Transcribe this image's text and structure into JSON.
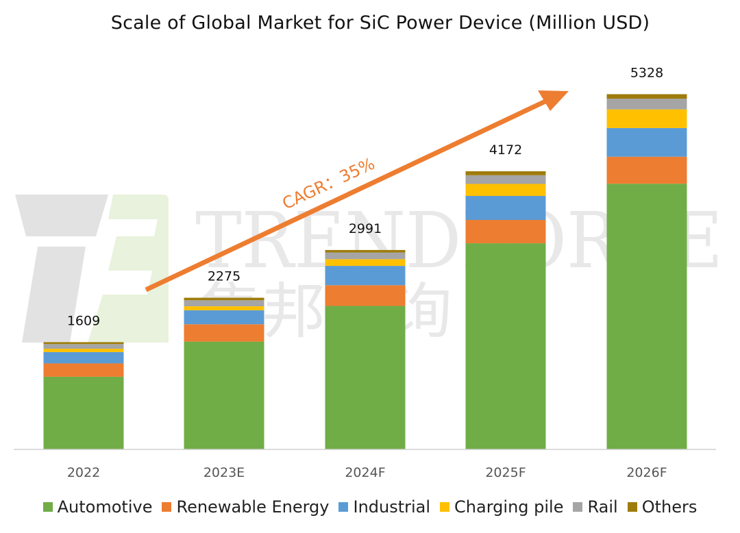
{
  "chart_data": {
    "type": "bar",
    "stacked": true,
    "title": "Scale of Global Market for SiC Power Device (Million USD)",
    "xlabel": "",
    "ylabel": "",
    "categories": [
      "2022",
      "2023E",
      "2024F",
      "2025F",
      "2026F"
    ],
    "totals": [
      "1609",
      "2275",
      "2991",
      "4172",
      "5328"
    ],
    "total_values": [
      1609,
      2275,
      2991,
      4172,
      5328
    ],
    "ylim": [
      0,
      5600
    ],
    "grid": false,
    "legend_position": "bottom",
    "series": [
      {
        "name": "Automotive",
        "color": "#70AD47",
        "values": [
          1090,
          1617,
          2153,
          3092,
          3985
        ]
      },
      {
        "name": "Renewable Energy",
        "color": "#ED7D31",
        "values": [
          200,
          260,
          310,
          350,
          405
        ]
      },
      {
        "name": "Industrial",
        "color": "#5B9BD5",
        "values": [
          170,
          210,
          290,
          360,
          430
        ]
      },
      {
        "name": "Charging pile",
        "color": "#FFC000",
        "values": [
          50,
          60,
          100,
          180,
          280
        ]
      },
      {
        "name": "Rail",
        "color": "#A5A5A5",
        "values": [
          70,
          90,
          100,
          130,
          160
        ]
      },
      {
        "name": "Others",
        "color": "#9E7C0C",
        "values": [
          29,
          38,
          38,
          60,
          68
        ]
      }
    ],
    "annotation": "CAGR：35%"
  },
  "watermark": {
    "brand": "TRENDFORCE",
    "chinese": "集邦咨询"
  }
}
